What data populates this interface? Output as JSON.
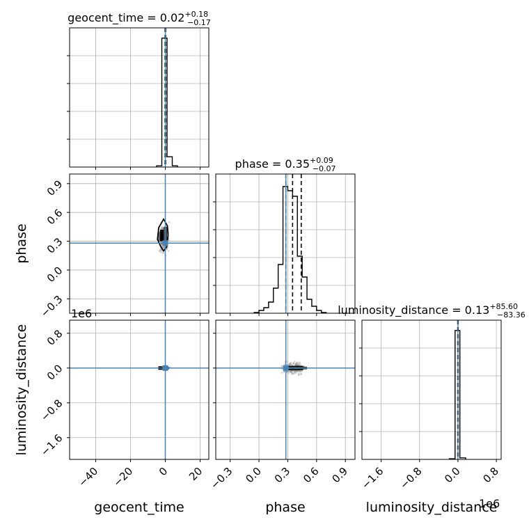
{
  "chart_data": {
    "type": "corner",
    "panels": [
      {
        "kind": "hist1d",
        "param": "geocent_time",
        "title_main": "geocent_time = 0.02",
        "title_sup": "+0.18",
        "title_sub": "−0.17",
        "xlim": [
          -55,
          25
        ],
        "bins": [
          [
            -5,
            -2,
            0.01
          ],
          [
            -2,
            1,
            1.0
          ],
          [
            1,
            4,
            0.08
          ],
          [
            4,
            7,
            0.01
          ]
        ],
        "ymax": 1.08,
        "quantiles": [
          -0.15,
          0.02,
          0.2
        ],
        "truth": 0.0
      },
      {
        "kind": "hist1d",
        "param": "phase",
        "title_main": "phase = 0.35",
        "title_sup": "+0.09",
        "title_sub": "−0.07",
        "xlim": [
          -0.45,
          1.0
        ],
        "bins": [
          [
            -0.05,
            0.0,
            0.005
          ],
          [
            0.0,
            0.05,
            0.02
          ],
          [
            0.05,
            0.1,
            0.04
          ],
          [
            0.1,
            0.15,
            0.08
          ],
          [
            0.15,
            0.2,
            0.18
          ],
          [
            0.2,
            0.25,
            0.35
          ],
          [
            0.25,
            0.3,
            0.91
          ],
          [
            0.3,
            0.35,
            0.88
          ],
          [
            0.35,
            0.4,
            0.84
          ],
          [
            0.4,
            0.45,
            0.41
          ],
          [
            0.45,
            0.5,
            0.26
          ],
          [
            0.5,
            0.55,
            0.1
          ],
          [
            0.55,
            0.6,
            0.05
          ],
          [
            0.6,
            0.65,
            0.02
          ],
          [
            0.65,
            0.7,
            0.005
          ]
        ],
        "ymax": 1.0,
        "quantiles": [
          0.28,
          0.35,
          0.44
        ],
        "truth": 0.28
      },
      {
        "kind": "hist1d",
        "param": "luminosity_distance",
        "title_main": "luminosity_distance = 0.13",
        "title_sup": "+85.60",
        "title_sub": "−83.36",
        "xlim": [
          -2.0,
          0.9
        ],
        "bins": [
          [
            -0.18,
            -0.06,
            0.005
          ],
          [
            -0.06,
            0.04,
            1.0
          ],
          [
            0.04,
            0.16,
            0.012
          ]
        ],
        "ymax": 1.08,
        "quantiles": [
          -0.005,
          0.0,
          0.005
        ],
        "truth": 0.0
      },
      {
        "kind": "scatter2d",
        "x": "geocent_time",
        "y": "phase",
        "xlim": [
          -55,
          25
        ],
        "ylim": [
          -0.45,
          1.0
        ],
        "truth": [
          0.0,
          0.28
        ],
        "center": [
          -1.0,
          0.32
        ],
        "spread": [
          1.6,
          0.09
        ],
        "density_boxes": [
          [
            -3,
            -1,
            0.3,
            0.42,
            "#000"
          ],
          [
            -1,
            1,
            0.27,
            0.45,
            "#444"
          ],
          [
            -4,
            -3,
            0.3,
            0.4,
            "#666"
          ]
        ],
        "contour": [
          [
            -2.5,
            0.24
          ],
          [
            -4.5,
            0.32
          ],
          [
            -3.8,
            0.44
          ],
          [
            -1,
            0.53
          ],
          [
            1.2,
            0.46
          ],
          [
            1.6,
            0.36
          ],
          [
            0.8,
            0.24
          ],
          [
            -1,
            0.2
          ],
          [
            -2.5,
            0.24
          ]
        ]
      },
      {
        "kind": "scatter2d",
        "x": "geocent_time",
        "y": "luminosity_distance",
        "xlim": [
          -55,
          25
        ],
        "ylim": [
          -2.1,
          1.1
        ],
        "truth": [
          0.0,
          0.0
        ],
        "center": [
          -0.5,
          0.0
        ],
        "spread": [
          1.5,
          0.02
        ],
        "density_boxes": [
          [
            -4,
            -2,
            -0.04,
            0.04,
            "#000"
          ],
          [
            -2,
            2,
            -0.03,
            0.03,
            "#222"
          ]
        ],
        "contour": []
      },
      {
        "kind": "scatter2d",
        "x": "phase",
        "y": "luminosity_distance",
        "xlim": [
          -0.45,
          1.0
        ],
        "ylim": [
          -2.1,
          1.1
        ],
        "truth": [
          0.28,
          0.0
        ],
        "center": [
          0.36,
          0.0
        ],
        "spread": [
          0.07,
          0.08
        ],
        "density_boxes": [
          [
            0.3,
            0.46,
            -0.05,
            0.05,
            "#000"
          ],
          [
            0.27,
            0.5,
            -0.03,
            0.03,
            "#333"
          ]
        ],
        "contour": []
      }
    ],
    "xticks": {
      "geocent_time": [
        -40,
        -20,
        0,
        20
      ],
      "phase": [
        -0.3,
        0.0,
        0.3,
        0.6,
        0.9
      ],
      "luminosity_distance": [
        -1.6,
        -0.8,
        0.0,
        0.8
      ]
    },
    "xtick_labels": {
      "geocent_time": [
        "−40",
        "−20",
        "0",
        "20"
      ],
      "phase": [
        "−0.3",
        "0.0",
        "0.3",
        "0.6",
        "0.9"
      ],
      "luminosity_distance": [
        "−1.6",
        "−0.8",
        "0.0",
        "0.8"
      ]
    },
    "yticks": {
      "phase": [
        -0.3,
        0.0,
        0.3,
        0.6,
        0.9
      ],
      "luminosity_distance": [
        -1.6,
        -0.8,
        0.0,
        0.8
      ]
    },
    "ytick_labels": {
      "phase": [
        "−0.3",
        "0.0",
        "0.3",
        "0.6",
        "0.9"
      ],
      "luminosity_distance": [
        "−1.6",
        "−0.8",
        "0.0",
        "0.8"
      ]
    },
    "xlabels": [
      "geocent_time",
      "phase",
      "luminosity_distance"
    ],
    "ylabels": [
      "phase",
      "luminosity_distance"
    ],
    "offset_text": "1e6",
    "grid": true,
    "colors": {
      "truth": "#4682b4",
      "hist": "#000000",
      "grid": "#b0b0b0",
      "points": "#888888"
    }
  }
}
